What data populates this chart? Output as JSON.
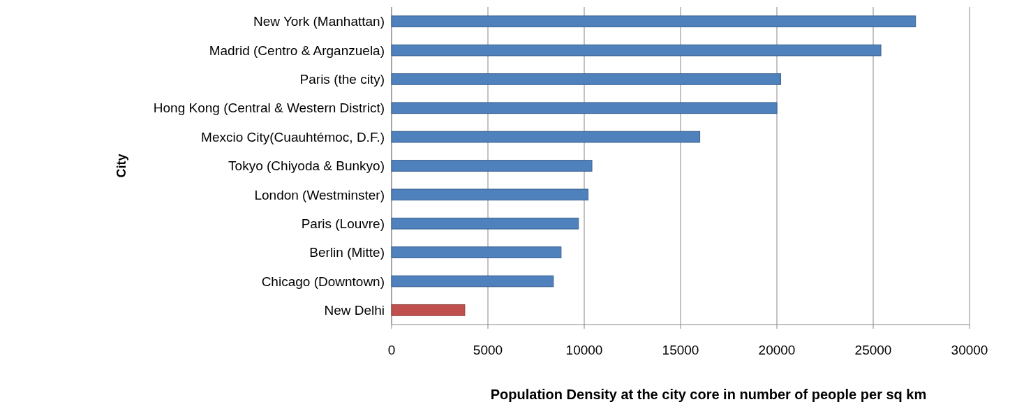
{
  "chart_data": {
    "type": "bar",
    "orientation": "horizontal",
    "xlabel": "Population Density at the city core in number of people per sq km",
    "ylabel": "City",
    "categories": [
      "New York (Manhattan)",
      "Madrid (Centro & Arganzuela)",
      "Paris (the city)",
      "Hong Kong (Central & Western District)",
      "Mexcio City(Cuauhtémoc, D.F.)",
      "Tokyo (Chiyoda & Bunkyo)",
      "London (Westminster)",
      "Paris (Louvre)",
      "Berlin (Mitte)",
      "Chicago (Downtown)",
      "New Delhi"
    ],
    "values": [
      27200,
      25400,
      20200,
      20000,
      16000,
      10400,
      10200,
      9700,
      8800,
      8400,
      3800
    ],
    "colors": [
      "#4f81bd",
      "#4f81bd",
      "#4f81bd",
      "#4f81bd",
      "#4f81bd",
      "#4f81bd",
      "#4f81bd",
      "#4f81bd",
      "#4f81bd",
      "#4f81bd",
      "#c0504d"
    ],
    "xlim": [
      0,
      30000
    ],
    "xticks": [
      0,
      5000,
      10000,
      15000,
      20000,
      25000,
      30000
    ],
    "grid": "x"
  }
}
